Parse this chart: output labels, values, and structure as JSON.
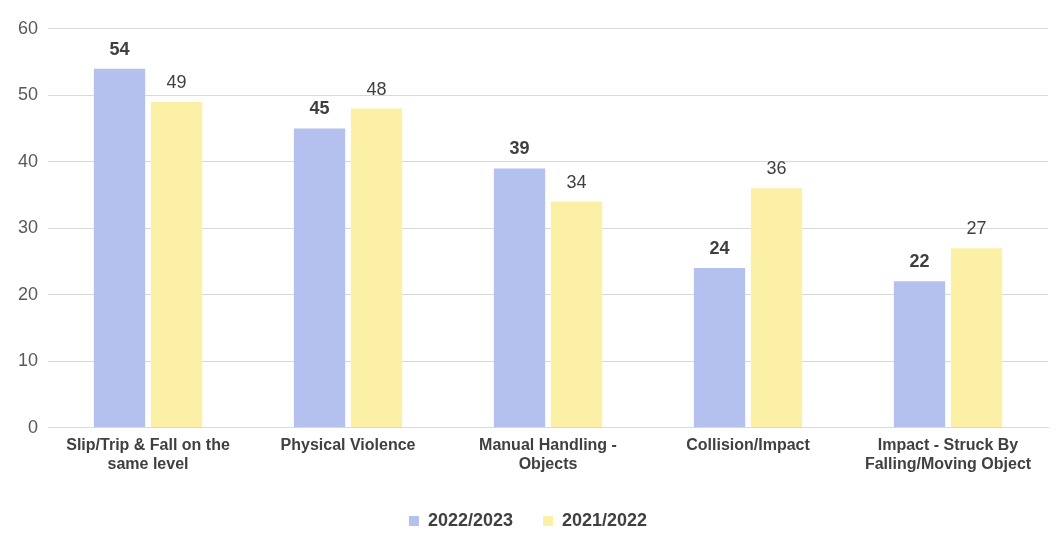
{
  "chart_data": {
    "type": "bar",
    "categories": [
      "Slip/Trip & Fall on the same level",
      "Physical Violence",
      "Manual Handling - Objects",
      "Collision/Impact",
      "Impact - Struck By Falling/Moving Object"
    ],
    "series": [
      {
        "name": "2022/2023",
        "color": "#b4c0ee",
        "values": [
          54,
          45,
          39,
          24,
          22
        ]
      },
      {
        "name": "2021/2022",
        "color": "#fcefa6",
        "values": [
          49,
          48,
          34,
          36,
          27
        ]
      }
    ],
    "ylim": [
      0,
      60
    ],
    "yticks": [
      0,
      10,
      20,
      30,
      40,
      50,
      60
    ],
    "grid": "y",
    "legend": "bottom",
    "data_labels": true
  }
}
